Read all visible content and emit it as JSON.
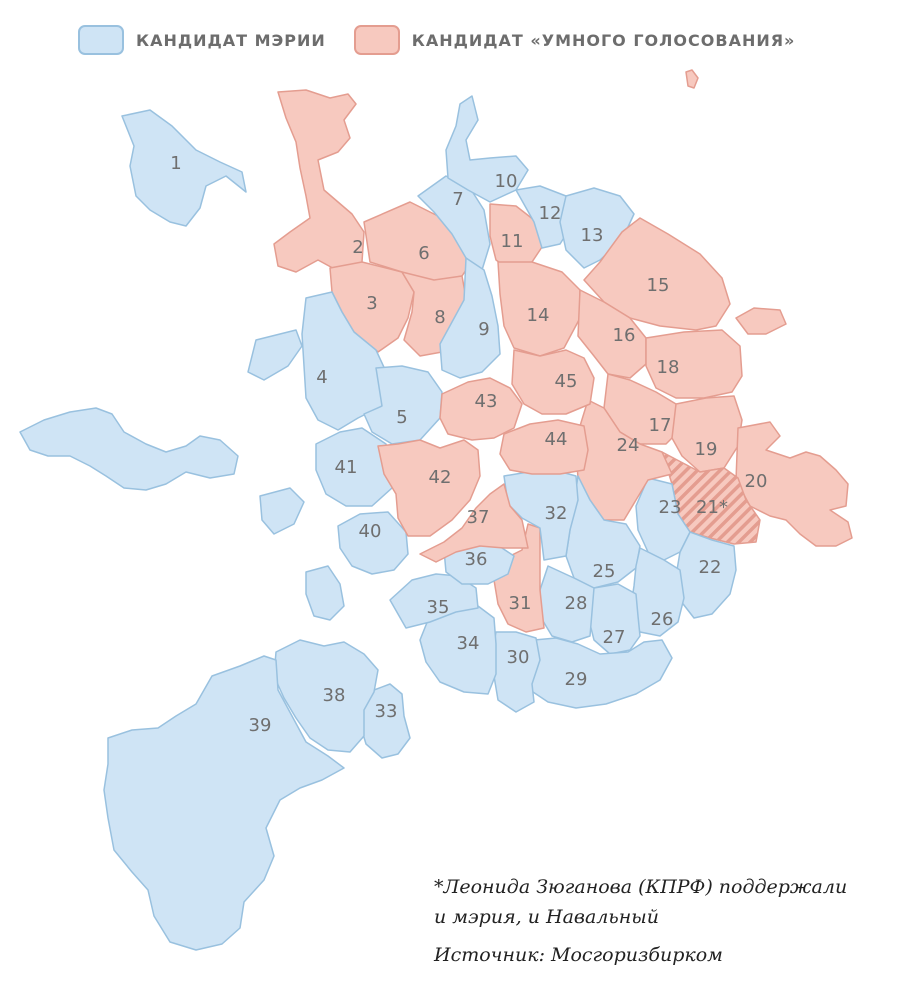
{
  "legend": [
    {
      "label": "КАНДИДАТ МЭРИИ",
      "fill": "#cfe4f5",
      "stroke": "#99c1df"
    },
    {
      "label": "КАНДИДАТ «УМНОГО ГОЛОСОВАНИЯ»",
      "fill": "#f7c9bf",
      "stroke": "#e49d90"
    }
  ],
  "colors": {
    "mayor_fill": "#cfe4f5",
    "mayor_stroke": "#99c1df",
    "smart_fill": "#f7c9bf",
    "smart_stroke": "#e49d90",
    "label": "#6f6f6f"
  },
  "districts": [
    {
      "label": "1",
      "support": "mayor"
    },
    {
      "label": "2",
      "support": "smart"
    },
    {
      "label": "3",
      "support": "smart"
    },
    {
      "label": "4",
      "support": "mayor"
    },
    {
      "label": "5",
      "support": "mayor"
    },
    {
      "label": "6",
      "support": "smart"
    },
    {
      "label": "7",
      "support": "mayor"
    },
    {
      "label": "8",
      "support": "smart"
    },
    {
      "label": "9",
      "support": "mayor"
    },
    {
      "label": "10",
      "support": "mayor"
    },
    {
      "label": "11",
      "support": "smart"
    },
    {
      "label": "12",
      "support": "mayor"
    },
    {
      "label": "13",
      "support": "mayor"
    },
    {
      "label": "14",
      "support": "smart"
    },
    {
      "label": "15",
      "support": "smart"
    },
    {
      "label": "16",
      "support": "smart"
    },
    {
      "label": "17",
      "support": "smart"
    },
    {
      "label": "18",
      "support": "smart"
    },
    {
      "label": "19",
      "support": "smart"
    },
    {
      "label": "20",
      "support": "smart"
    },
    {
      "label": "21*",
      "support": "both"
    },
    {
      "label": "22",
      "support": "mayor"
    },
    {
      "label": "23",
      "support": "mayor"
    },
    {
      "label": "24",
      "support": "smart"
    },
    {
      "label": "25",
      "support": "mayor"
    },
    {
      "label": "26",
      "support": "mayor"
    },
    {
      "label": "27",
      "support": "mayor"
    },
    {
      "label": "28",
      "support": "mayor"
    },
    {
      "label": "29",
      "support": "mayor"
    },
    {
      "label": "30",
      "support": "mayor"
    },
    {
      "label": "31",
      "support": "smart"
    },
    {
      "label": "32",
      "support": "mayor"
    },
    {
      "label": "33",
      "support": "mayor"
    },
    {
      "label": "34",
      "support": "mayor"
    },
    {
      "label": "35",
      "support": "mayor"
    },
    {
      "label": "36",
      "support": "mayor"
    },
    {
      "label": "37",
      "support": "smart"
    },
    {
      "label": "38",
      "support": "mayor"
    },
    {
      "label": "39",
      "support": "mayor"
    },
    {
      "label": "40",
      "support": "mayor"
    },
    {
      "label": "41",
      "support": "mayor"
    },
    {
      "label": "42",
      "support": "smart"
    },
    {
      "label": "43",
      "support": "smart"
    },
    {
      "label": "44",
      "support": "smart"
    },
    {
      "label": "45",
      "support": "smart"
    }
  ],
  "notes": {
    "footnote_line1": "*Леонида Зюганова (КПРФ) поддержали",
    "footnote_line2": "и мэрия, и Навальный",
    "source": "Источник: Мосгоризбирком"
  }
}
